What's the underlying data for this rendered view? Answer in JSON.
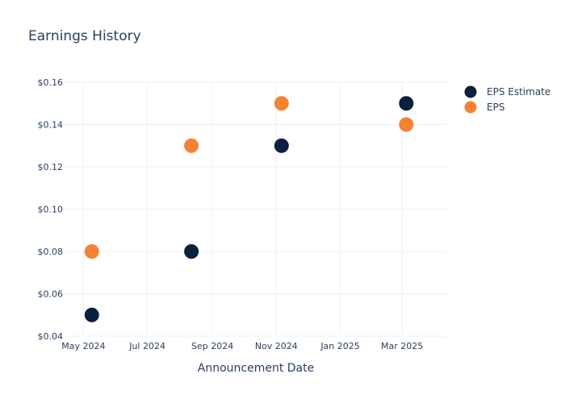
{
  "chart_data": {
    "type": "scatter",
    "title": "Earnings History",
    "xlabel": "Announcement Date",
    "ylabel": "",
    "ylim": [
      0.04,
      0.16
    ],
    "xlim": [
      "2024-04-13",
      "2025-04-13"
    ],
    "grid": true,
    "legend_position": "top-right",
    "y_ticks": [
      {
        "value": 0.04,
        "label": "$0.04"
      },
      {
        "value": 0.06,
        "label": "$0.06"
      },
      {
        "value": 0.08,
        "label": "$0.08"
      },
      {
        "value": 0.1,
        "label": "$0.10"
      },
      {
        "value": 0.12,
        "label": "$0.12"
      },
      {
        "value": 0.14,
        "label": "$0.14"
      },
      {
        "value": 0.16,
        "label": "$0.16"
      }
    ],
    "x_ticks": [
      {
        "value": "2024-05-01",
        "label": "May 2024"
      },
      {
        "value": "2024-07-01",
        "label": "Jul 2024"
      },
      {
        "value": "2024-09-01",
        "label": "Sep 2024"
      },
      {
        "value": "2024-11-01",
        "label": "Nov 2024"
      },
      {
        "value": "2025-01-01",
        "label": "Jan 2025"
      },
      {
        "value": "2025-03-01",
        "label": "Mar 2025"
      }
    ],
    "series": [
      {
        "name": "EPS Estimate",
        "color": "#0b1f3f",
        "x": [
          "2024-05-09",
          "2024-08-12",
          "2024-11-06",
          "2025-03-05"
        ],
        "y": [
          0.05,
          0.08,
          0.13,
          0.15
        ]
      },
      {
        "name": "EPS",
        "color": "#f58233",
        "x": [
          "2024-05-09",
          "2024-08-12",
          "2024-11-06",
          "2025-03-05"
        ],
        "y": [
          0.08,
          0.13,
          0.15,
          0.14
        ]
      }
    ]
  }
}
